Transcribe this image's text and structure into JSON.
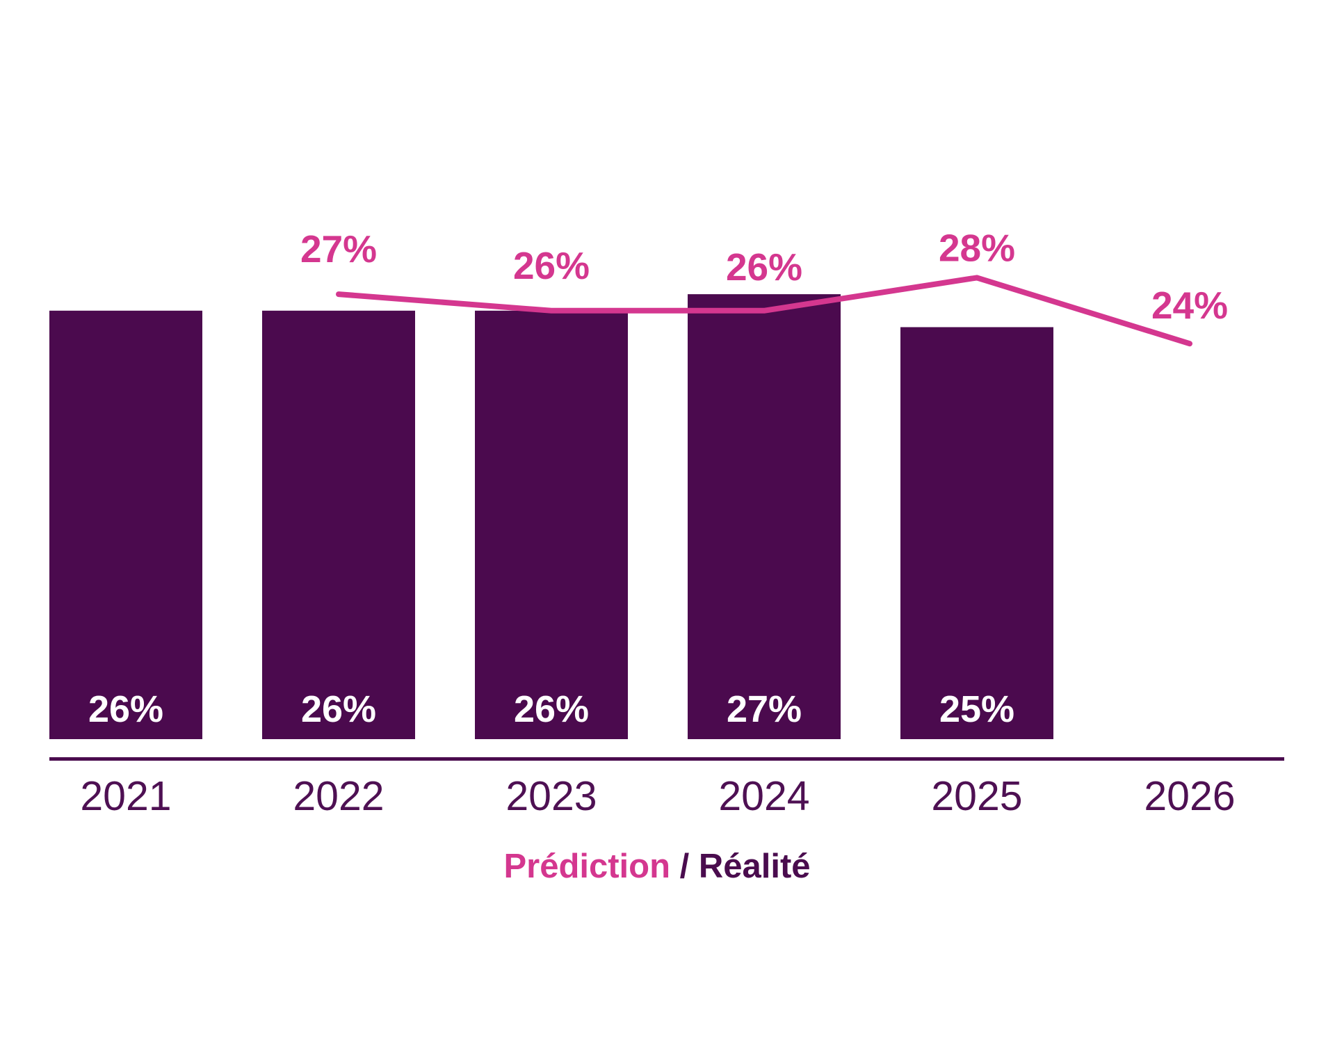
{
  "chart_data": {
    "type": "bar",
    "categories": [
      "2021",
      "2022",
      "2023",
      "2024",
      "2025",
      "2026"
    ],
    "series": [
      {
        "name": "Réalité",
        "kind": "bar",
        "color": "#4B0A4E",
        "label_color": "#FFFFFF",
        "values": [
          26,
          26,
          26,
          27,
          25,
          null
        ],
        "labels": [
          "26%",
          "26%",
          "26%",
          "27%",
          "25%",
          null
        ]
      },
      {
        "name": "Prédiction",
        "kind": "line",
        "color": "#D4378F",
        "values": [
          null,
          27,
          26,
          26,
          28,
          24
        ],
        "labels": [
          null,
          "27%",
          "26%",
          "26%",
          "28%",
          "24%"
        ]
      }
    ],
    "value_unit": "%",
    "grid": false,
    "y_axis_visible": false,
    "x_axis_visible": true,
    "x_label_color": "#4E1053",
    "axis_line_color": "#4A0C4E",
    "legend": {
      "position": "bottom",
      "parts": [
        {
          "text": "Prédiction",
          "color": "#D4378F"
        },
        {
          "text": " / ",
          "color": "#4A0C4E"
        },
        {
          "text": "Réalité",
          "color": "#4A0C4E"
        }
      ]
    }
  }
}
